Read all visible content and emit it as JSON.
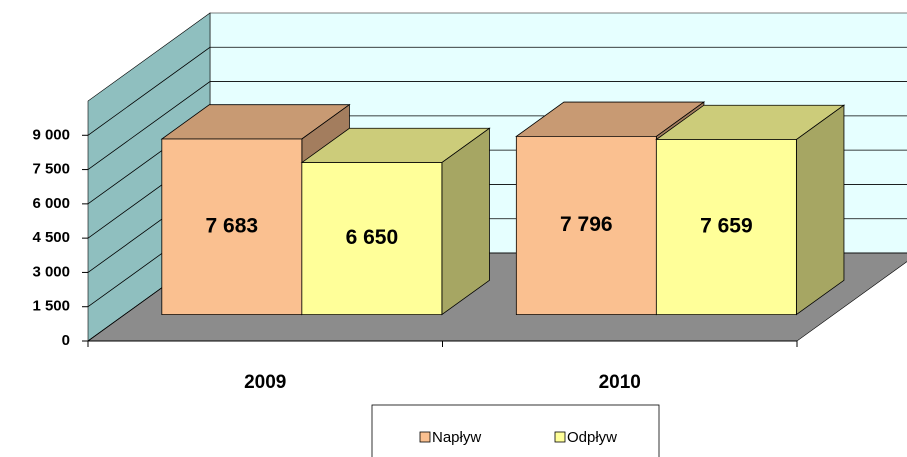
{
  "chart_data": {
    "type": "bar3d",
    "categories": [
      "2009",
      "2010"
    ],
    "series": [
      {
        "name": "Napływ",
        "color": "#FAC090",
        "values": [
          7683,
          7796
        ],
        "value_labels": [
          "7 683",
          "7 796"
        ]
      },
      {
        "name": "Odpływ",
        "color": "#FFFF99",
        "values": [
          6650,
          7659
        ],
        "value_labels": [
          "6 650",
          "7 659"
        ]
      }
    ],
    "ylim": [
      0,
      10500
    ],
    "yticks": [
      0,
      {
        "value": 1500,
        "label": "1 500"
      },
      {
        "value": 3000,
        "label": "3 000"
      },
      {
        "value": 4500,
        "label": "4 500"
      },
      {
        "value": 6000,
        "label": "6 000"
      },
      {
        "value": 7500,
        "label": "7 500"
      },
      {
        "value": 9000,
        "label": "9 000"
      }
    ],
    "grid": true,
    "legend": "bottom"
  }
}
